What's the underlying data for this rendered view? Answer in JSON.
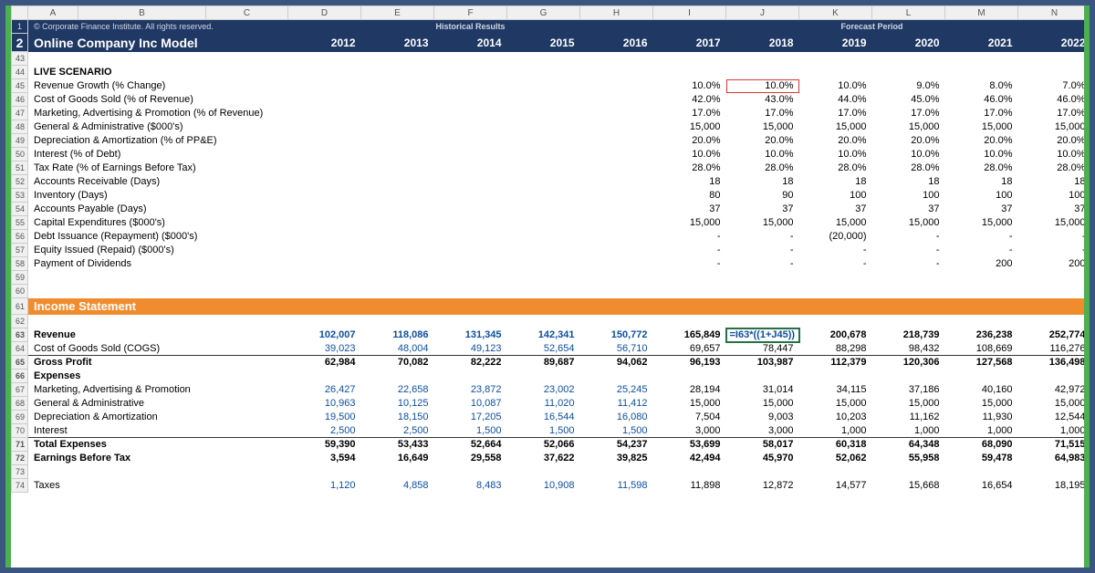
{
  "copyright": "© Corporate Finance Institute. All rights reserved.",
  "hist_label": "Historical Results",
  "fcst_label": "Forecast Period",
  "model_title": "Online Company Inc Model",
  "cols": [
    "A",
    "B",
    "C",
    "D",
    "E",
    "F",
    "G",
    "H",
    "I",
    "J",
    "K",
    "L",
    "M",
    "N"
  ],
  "years": [
    "2012",
    "2013",
    "2014",
    "2015",
    "2016",
    "2017",
    "2018",
    "2019",
    "2020",
    "2021",
    "2022"
  ],
  "live": "LIVE SCENARIO",
  "assump": [
    {
      "r": 45,
      "l": "Revenue Growth (% Change)",
      "v": [
        "",
        "",
        "",
        "",
        "",
        "10.0%",
        "10.0%",
        "10.0%",
        "9.0%",
        "8.0%",
        "7.0%"
      ]
    },
    {
      "r": 46,
      "l": "Cost of Goods Sold (% of Revenue)",
      "v": [
        "",
        "",
        "",
        "",
        "",
        "42.0%",
        "43.0%",
        "44.0%",
        "45.0%",
        "46.0%",
        "46.0%"
      ]
    },
    {
      "r": 47,
      "l": "Marketing, Advertising & Promotion (% of Revenue)",
      "v": [
        "",
        "",
        "",
        "",
        "",
        "17.0%",
        "17.0%",
        "17.0%",
        "17.0%",
        "17.0%",
        "17.0%"
      ]
    },
    {
      "r": 48,
      "l": "General & Administrative ($000's)",
      "v": [
        "",
        "",
        "",
        "",
        "",
        "15,000",
        "15,000",
        "15,000",
        "15,000",
        "15,000",
        "15,000"
      ]
    },
    {
      "r": 49,
      "l": "Depreciation & Amortization (% of PP&E)",
      "v": [
        "",
        "",
        "",
        "",
        "",
        "20.0%",
        "20.0%",
        "20.0%",
        "20.0%",
        "20.0%",
        "20.0%"
      ]
    },
    {
      "r": 50,
      "l": "Interest (% of Debt)",
      "v": [
        "",
        "",
        "",
        "",
        "",
        "10.0%",
        "10.0%",
        "10.0%",
        "10.0%",
        "10.0%",
        "10.0%"
      ]
    },
    {
      "r": 51,
      "l": "Tax Rate (% of Earnings Before Tax)",
      "v": [
        "",
        "",
        "",
        "",
        "",
        "28.0%",
        "28.0%",
        "28.0%",
        "28.0%",
        "28.0%",
        "28.0%"
      ]
    },
    {
      "r": 52,
      "l": "Accounts Receivable (Days)",
      "v": [
        "",
        "",
        "",
        "",
        "",
        "18",
        "18",
        "18",
        "18",
        "18",
        "18"
      ]
    },
    {
      "r": 53,
      "l": "Inventory (Days)",
      "v": [
        "",
        "",
        "",
        "",
        "",
        "80",
        "90",
        "100",
        "100",
        "100",
        "100"
      ]
    },
    {
      "r": 54,
      "l": "Accounts Payable (Days)",
      "v": [
        "",
        "",
        "",
        "",
        "",
        "37",
        "37",
        "37",
        "37",
        "37",
        "37"
      ]
    },
    {
      "r": 55,
      "l": "Capital Expenditures ($000's)",
      "v": [
        "",
        "",
        "",
        "",
        "",
        "15,000",
        "15,000",
        "15,000",
        "15,000",
        "15,000",
        "15,000"
      ]
    },
    {
      "r": 56,
      "l": "Debt Issuance (Repayment) ($000's)",
      "v": [
        "",
        "",
        "",
        "",
        "",
        "-",
        "-",
        "(20,000)",
        "-",
        "-",
        "-"
      ]
    },
    {
      "r": 57,
      "l": "Equity Issued (Repaid) ($000's)",
      "v": [
        "",
        "",
        "",
        "",
        "",
        "-",
        "-",
        "-",
        "-",
        "-",
        "-"
      ]
    },
    {
      "r": 58,
      "l": "Payment of Dividends",
      "v": [
        "",
        "",
        "",
        "",
        "",
        "-",
        "-",
        "-",
        "-",
        "200",
        "200"
      ]
    }
  ],
  "is_title": "Income Statement",
  "is_rows": [
    {
      "r": 63,
      "l": "Revenue",
      "bold": true,
      "blue": 5,
      "v": [
        "102,007",
        "118,086",
        "131,345",
        "142,341",
        "150,772",
        "165,849",
        "=I63*((1+J45))",
        "200,678",
        "218,739",
        "236,238",
        "252,774"
      ],
      "sel": 6
    },
    {
      "r": 64,
      "l": "Cost of Goods Sold (COGS)",
      "blue": 5,
      "v": [
        "39,023",
        "48,004",
        "49,123",
        "52,654",
        "56,710",
        "69,657",
        "78,447",
        "88,298",
        "98,432",
        "108,669",
        "116,276"
      ]
    },
    {
      "r": 65,
      "l": "Gross Profit",
      "bold": true,
      "bt": true,
      "v": [
        "62,984",
        "70,082",
        "82,222",
        "89,687",
        "94,062",
        "96,193",
        "103,987",
        "112,379",
        "120,306",
        "127,568",
        "136,498"
      ]
    },
    {
      "r": 66,
      "l": "Expenses",
      "bold": true,
      "v": [
        "",
        "",
        "",
        "",
        "",
        "",
        "",
        "",
        "",
        "",
        ""
      ]
    },
    {
      "r": 67,
      "l": "Marketing, Advertising & Promotion",
      "blue": 5,
      "v": [
        "26,427",
        "22,658",
        "23,872",
        "23,002",
        "25,245",
        "28,194",
        "31,014",
        "34,115",
        "37,186",
        "40,160",
        "42,972"
      ]
    },
    {
      "r": 68,
      "l": "General & Administrative",
      "blue": 5,
      "v": [
        "10,963",
        "10,125",
        "10,087",
        "11,020",
        "11,412",
        "15,000",
        "15,000",
        "15,000",
        "15,000",
        "15,000",
        "15,000"
      ]
    },
    {
      "r": 69,
      "l": "Depreciation & Amortization",
      "blue": 5,
      "v": [
        "19,500",
        "18,150",
        "17,205",
        "16,544",
        "16,080",
        "7,504",
        "9,003",
        "10,203",
        "11,162",
        "11,930",
        "12,544"
      ]
    },
    {
      "r": 70,
      "l": "Interest",
      "blue": 5,
      "v": [
        "2,500",
        "2,500",
        "1,500",
        "1,500",
        "1,500",
        "3,000",
        "3,000",
        "1,000",
        "1,000",
        "1,000",
        "1,000"
      ]
    },
    {
      "r": 71,
      "l": "Total Expenses",
      "bold": true,
      "bt": true,
      "v": [
        "59,390",
        "53,433",
        "52,664",
        "52,066",
        "54,237",
        "53,699",
        "58,017",
        "60,318",
        "64,348",
        "68,090",
        "71,515"
      ]
    },
    {
      "r": 72,
      "l": "Earnings Before Tax",
      "bold": true,
      "v": [
        "3,594",
        "16,649",
        "29,558",
        "37,622",
        "39,825",
        "42,494",
        "45,970",
        "52,062",
        "55,958",
        "59,478",
        "64,983"
      ]
    },
    {
      "r": 73,
      "l": "",
      "v": [
        "",
        "",
        "",
        "",
        "",
        "",
        "",
        "",
        "",
        "",
        ""
      ]
    },
    {
      "r": 74,
      "l": "Taxes",
      "blue": 5,
      "v": [
        "1,120",
        "4,858",
        "8,483",
        "10,908",
        "11,598",
        "11,898",
        "12,872",
        "14,577",
        "15,668",
        "16,654",
        "18,195"
      ]
    }
  ]
}
